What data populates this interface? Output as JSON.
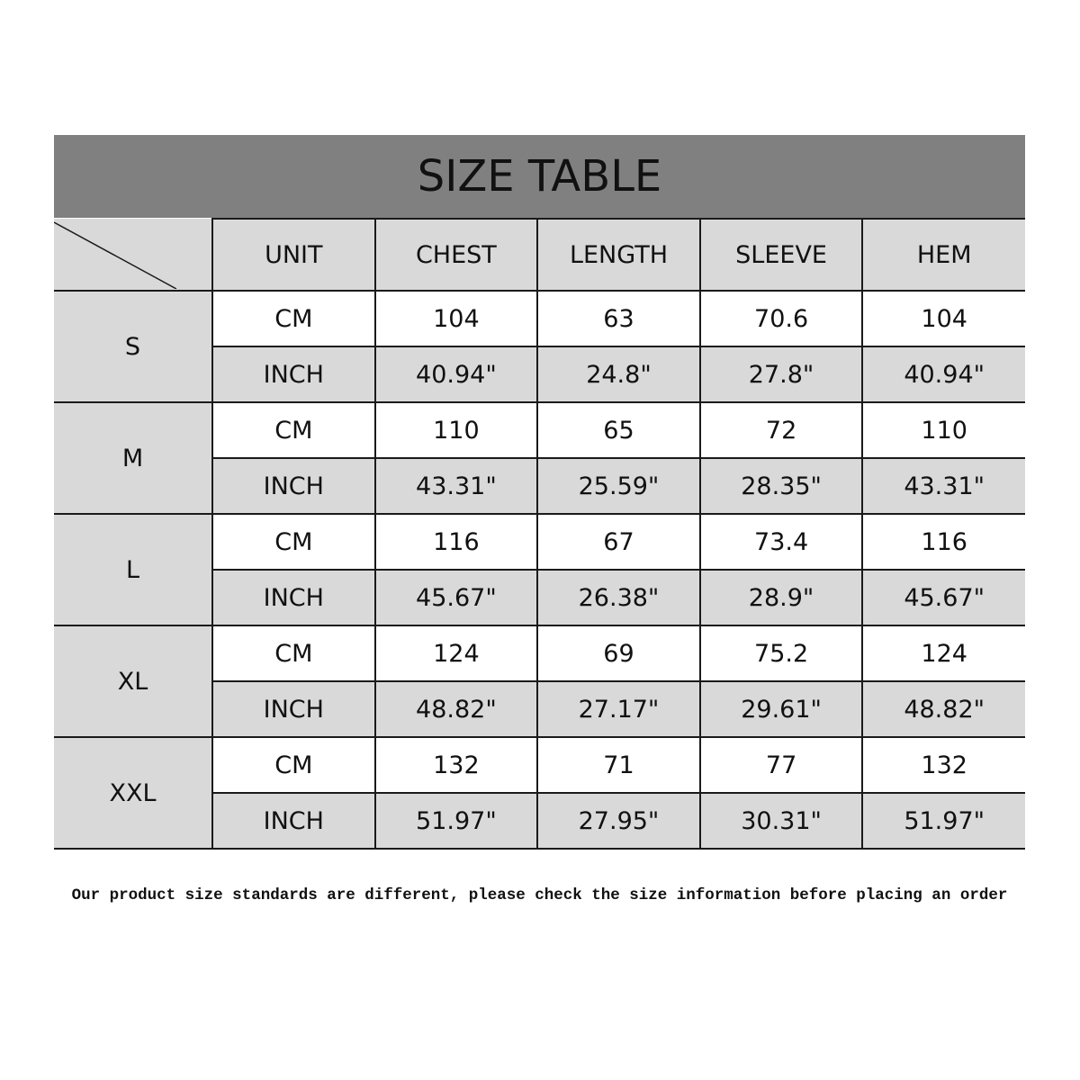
{
  "title": "SIZE TABLE",
  "headers": [
    "UNIT",
    "CHEST",
    "LENGTH",
    "SLEEVE",
    "HEM"
  ],
  "sizes": [
    {
      "size": "S",
      "cm": [
        "CM",
        "104",
        "63",
        "70.6",
        "104"
      ],
      "inch": [
        "INCH",
        "40.94\"",
        "24.8\"",
        "27.8\"",
        "40.94\""
      ]
    },
    {
      "size": "M",
      "cm": [
        "CM",
        "110",
        "65",
        "72",
        "110"
      ],
      "inch": [
        "INCH",
        "43.31\"",
        "25.59\"",
        "28.35\"",
        "43.31\""
      ]
    },
    {
      "size": "L",
      "cm": [
        "CM",
        "116",
        "67",
        "73.4",
        "116"
      ],
      "inch": [
        "INCH",
        "45.67\"",
        "26.38\"",
        "28.9\"",
        "45.67\""
      ]
    },
    {
      "size": "XL",
      "cm": [
        "CM",
        "124",
        "69",
        "75.2",
        "124"
      ],
      "inch": [
        "INCH",
        "48.82\"",
        "27.17\"",
        "29.61\"",
        "48.82\""
      ]
    },
    {
      "size": "XXL",
      "cm": [
        "CM",
        "132",
        "71",
        "77",
        "132"
      ],
      "inch": [
        "INCH",
        "51.97\"",
        "27.95\"",
        "30.31\"",
        "51.97\""
      ]
    }
  ],
  "note": "Our product size standards are different, please check the size information before placing an order",
  "colors": {
    "title_bg": "#808080",
    "cell_gray": "#d9d9d9",
    "border": "#1a1a1a"
  }
}
